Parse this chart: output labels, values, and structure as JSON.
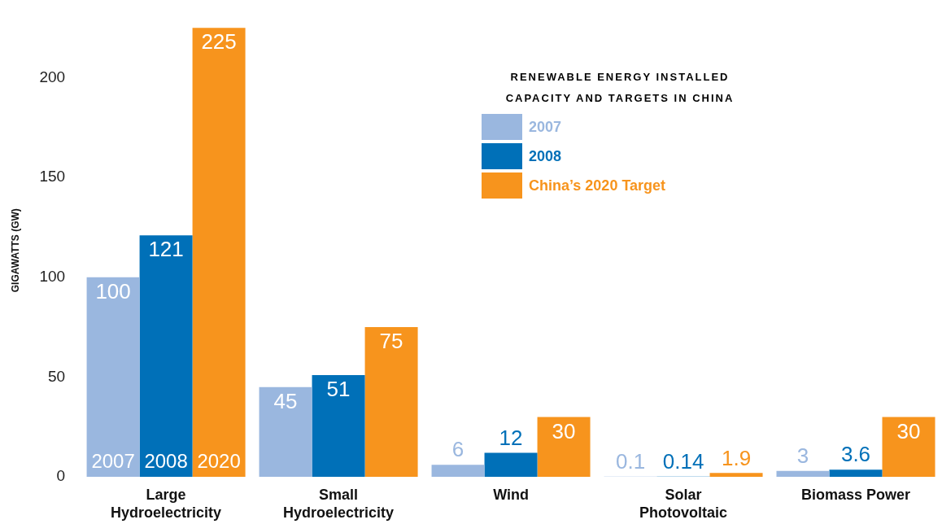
{
  "chart_data": {
    "type": "bar",
    "legend_title": "RENEWABLE ENERGY INSTALLED CAPACITY AND TARGETS IN CHINA",
    "ylabel": "GIGAWATTS (GW)",
    "categories": [
      "Large Hydroelectricity",
      "Small Hydroelectricity",
      "Wind",
      "Solar Photovoltaic",
      "Biomass Power"
    ],
    "series": [
      {
        "name": "2007",
        "color": "#9ab7df",
        "values": [
          100,
          45,
          6,
          0.1,
          3
        ]
      },
      {
        "name": "2008",
        "color": "#0070b8",
        "values": [
          121,
          51,
          12,
          0.14,
          3.6
        ]
      },
      {
        "name": "China’s 2020 Target",
        "color": "#f7941d",
        "values": [
          225,
          75,
          30,
          1.9,
          30
        ]
      }
    ],
    "ylim": [
      0,
      227
    ],
    "yticks": [
      0,
      50,
      100,
      150,
      200
    ],
    "grid": false,
    "legend": "top right",
    "data_labels": true,
    "annotations": [
      "2007",
      "2008",
      "2020"
    ]
  }
}
